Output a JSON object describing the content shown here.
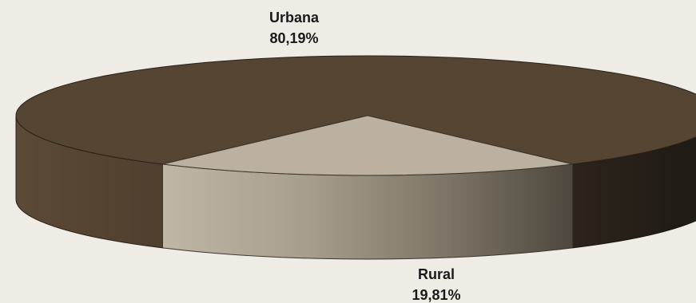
{
  "chart_data": {
    "type": "pie",
    "title": "",
    "slices": [
      {
        "label": "Urbana",
        "value": 80.19,
        "value_text": "80,19%",
        "color": "#554533"
      },
      {
        "label": "Rural",
        "value": 19.81,
        "value_text": "19,81%",
        "color": "#bcb1a0"
      }
    ],
    "legend": "none",
    "style": "3d"
  }
}
